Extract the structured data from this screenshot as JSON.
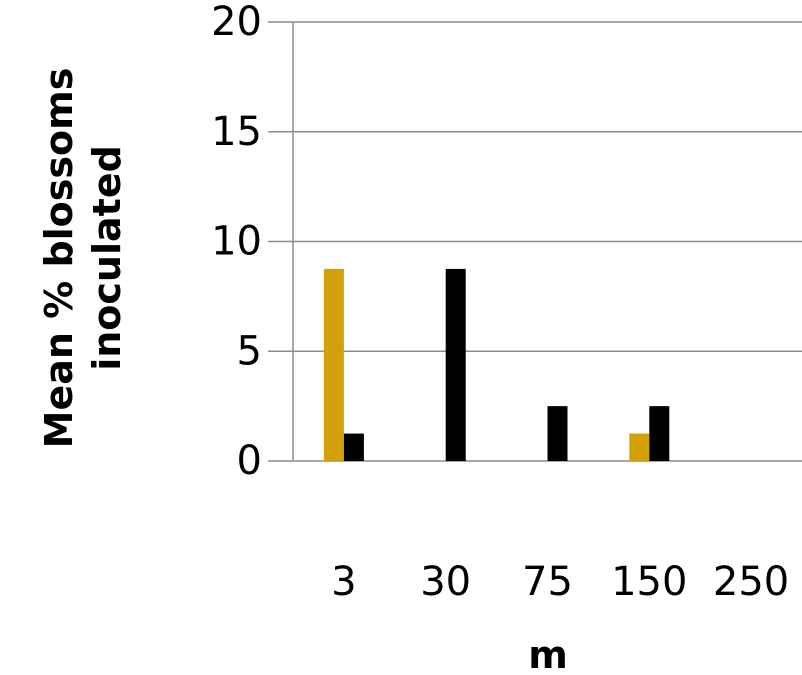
{
  "chart_data": {
    "type": "bar",
    "title": "",
    "xlabel": "m",
    "ylabel": "Mean % blossoms inoculated",
    "ylabel_lines": [
      "Mean % blossoms",
      "inoculated"
    ],
    "categories": [
      "3",
      "30",
      "75",
      "150",
      "250"
    ],
    "series": [
      {
        "color": "#d4a00a",
        "values": [
          8.75,
          0,
          0,
          1.25,
          0
        ]
      },
      {
        "color": "#000000",
        "values": [
          1.25,
          8.75,
          2.5,
          2.5,
          0
        ]
      }
    ],
    "ylim": [
      0,
      20
    ],
    "yticks": [
      "0",
      "5",
      "10",
      "15",
      "20"
    ],
    "grid": true,
    "legend": "none"
  }
}
